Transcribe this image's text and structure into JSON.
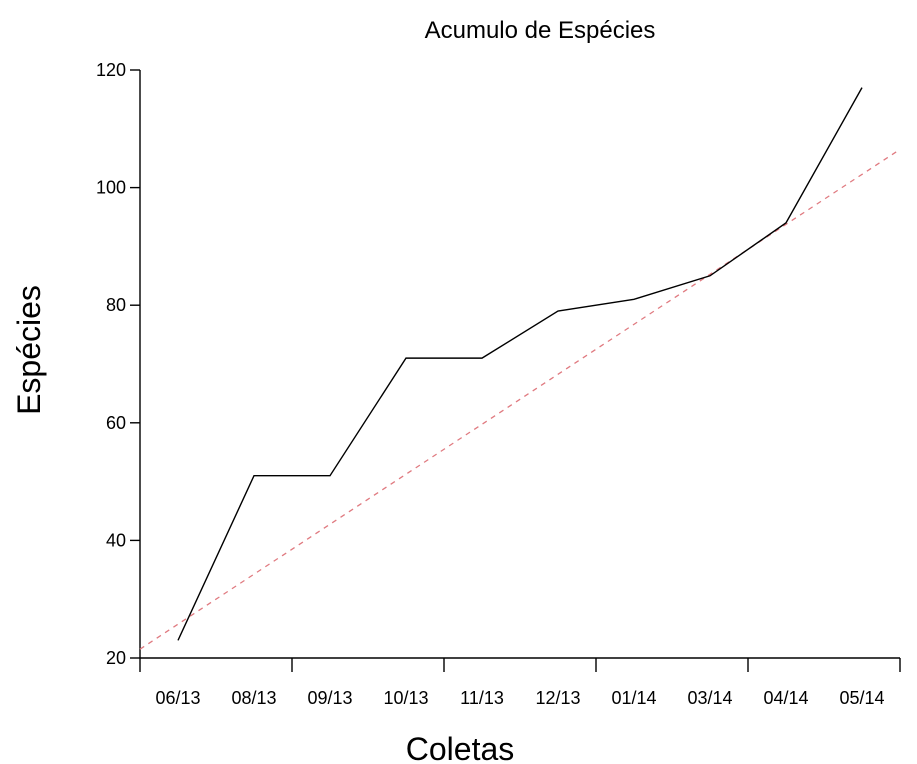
{
  "chart_data": {
    "type": "line",
    "title": "Acumulo de Espécies",
    "xlabel": "Coletas",
    "ylabel": "Espécies",
    "categories": [
      "06/13",
      "08/13",
      "09/13",
      "10/13",
      "11/13",
      "12/13",
      "01/14",
      "03/14",
      "04/14",
      "05/14"
    ],
    "series": [
      {
        "values": [
          23,
          51,
          51,
          71,
          71,
          79,
          81,
          85,
          94,
          117
        ],
        "color": "#000000"
      }
    ],
    "trendline": {
      "style": "dashed",
      "color": "#e07a80",
      "start": [
        0.5,
        21.5
      ],
      "end": [
        10.5,
        106.5
      ]
    },
    "yticks": [
      20,
      40,
      60,
      80,
      100,
      120
    ],
    "ylim": [
      20,
      120
    ],
    "xlim": [
      0.5,
      10.5
    ],
    "grid": false
  }
}
